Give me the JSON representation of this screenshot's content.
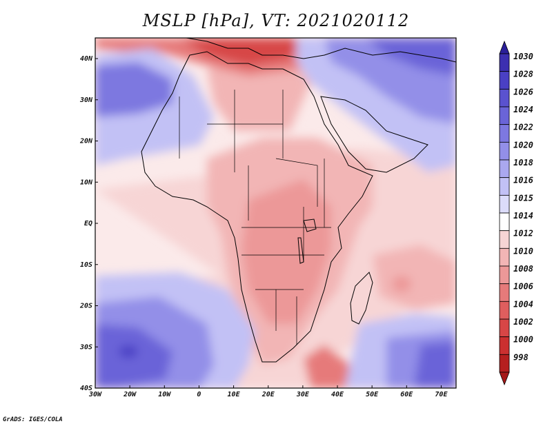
{
  "title": "MSLP [hPa], VT: 2021020112",
  "credit": "GrADS: IGES/COLA",
  "x_ticks": [
    "30W",
    "20W",
    "10W",
    "0",
    "10E",
    "20E",
    "30E",
    "40E",
    "50E",
    "60E",
    "70E"
  ],
  "y_ticks": [
    "40N",
    "30N",
    "20N",
    "10N",
    "EQ",
    "10S",
    "20S",
    "30S",
    "40S"
  ],
  "colorbar": {
    "labels": [
      "1030",
      "1028",
      "1026",
      "1024",
      "1022",
      "1020",
      "1018",
      "1016",
      "1015",
      "1014",
      "1012",
      "1010",
      "1008",
      "1006",
      "1004",
      "1002",
      "1000",
      "998"
    ],
    "colors": [
      "#3c2fb0",
      "#4a40c4",
      "#5a52cf",
      "#6a64d8",
      "#7d78e0",
      "#938fe8",
      "#aaa8ef",
      "#c2c1f5",
      "#dcdcfa",
      "#ffffff",
      "#f7d5d5",
      "#f2b5b5",
      "#ec9898",
      "#e67a7a",
      "#df5e5e",
      "#d74646",
      "#cb3030",
      "#b51f1f"
    ],
    "top_arrow_color": "#2a1f9a",
    "bottom_arrow_color": "#a51818"
  },
  "map_colors": {
    "neutral": "#fbeaea",
    "low1": "#f7d5d5",
    "low2": "#f2b5b5",
    "low3": "#ec9898",
    "low4": "#e67a7a",
    "low5": "#d74646",
    "low6": "#b51f1f",
    "high1": "#dcdcfa",
    "high2": "#c2c1f5",
    "high3": "#aaa8ef",
    "high4": "#938fe8",
    "high5": "#7d78e0",
    "high6": "#6a64d8",
    "high7": "#4a40c4"
  }
}
